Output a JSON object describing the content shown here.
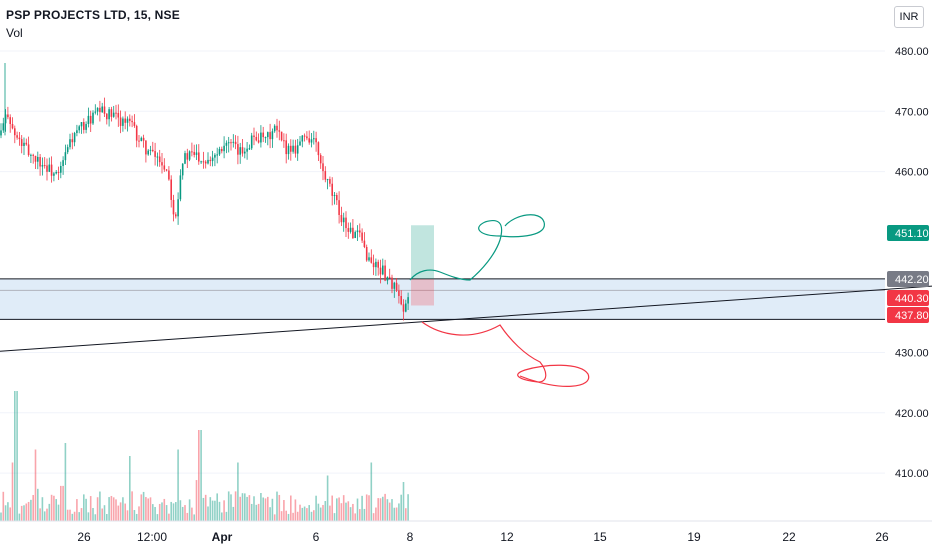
{
  "header": {
    "symbol_line": "PSP PROJECTS LTD, 15, NSE",
    "indicator": "Vol",
    "currency": "INR"
  },
  "chart_data": {
    "type": "candlestick",
    "y_axis": {
      "ticks": [
        "480.00",
        "470.00",
        "460.00",
        "430.00",
        "420.00",
        "410.00"
      ],
      "tick_values": [
        480,
        470,
        460,
        430,
        420,
        410
      ],
      "range": [
        401.6,
        488.6
      ]
    },
    "x_axis": {
      "ticks": [
        "26",
        "12:00",
        "Apr",
        "6",
        "8",
        "12",
        "15",
        "19",
        "22",
        "26"
      ],
      "bold": [
        "Apr"
      ]
    },
    "price_badges": [
      {
        "value": "451.10",
        "color": "#089981"
      },
      {
        "value": "442.20",
        "color": "#787b86"
      },
      {
        "value": "440.30",
        "color": "#f23645"
      },
      {
        "value": "437.80",
        "color": "#f23645"
      }
    ],
    "zone": {
      "top": 442.2,
      "bottom": 435.5,
      "color": "#d6e6f5"
    },
    "trendline": {
      "from": [
        0,
        430.2
      ],
      "to": [
        932,
        441.0
      ]
    },
    "position": {
      "entry": 442.2,
      "target": 451.1,
      "stop": 437.8
    },
    "price_anchors": [
      [
        0,
        466
      ],
      [
        8,
        470
      ],
      [
        14,
        466
      ],
      [
        30,
        463
      ],
      [
        45,
        461
      ],
      [
        58,
        459
      ],
      [
        70,
        465
      ],
      [
        85,
        468
      ],
      [
        100,
        470
      ],
      [
        115,
        469
      ],
      [
        130,
        468
      ],
      [
        140,
        465
      ],
      [
        150,
        463
      ],
      [
        160,
        462
      ],
      [
        168,
        460
      ],
      [
        175,
        452
      ],
      [
        182,
        462
      ],
      [
        195,
        463
      ],
      [
        205,
        462
      ],
      [
        215,
        463
      ],
      [
        225,
        465
      ],
      [
        240,
        463
      ],
      [
        255,
        466
      ],
      [
        265,
        465
      ],
      [
        275,
        467
      ],
      [
        285,
        464
      ],
      [
        295,
        464
      ],
      [
        305,
        466
      ],
      [
        315,
        465
      ],
      [
        322,
        460
      ],
      [
        330,
        457
      ],
      [
        340,
        453
      ],
      [
        350,
        450
      ],
      [
        360,
        449
      ],
      [
        370,
        445
      ],
      [
        380,
        444
      ],
      [
        390,
        442
      ],
      [
        397,
        440
      ],
      [
        403,
        436
      ],
      [
        410,
        440
      ]
    ],
    "volume_peaks": [
      {
        "x": 16,
        "v": 1.0
      },
      {
        "x": 35,
        "v": 0.55
      },
      {
        "x": 65,
        "v": 0.6
      },
      {
        "x": 130,
        "v": 0.5
      },
      {
        "x": 178,
        "v": 0.55
      },
      {
        "x": 200,
        "v": 0.7
      },
      {
        "x": 237,
        "v": 0.45
      },
      {
        "x": 328,
        "v": 0.35
      },
      {
        "x": 372,
        "v": 0.45
      },
      {
        "x": 403,
        "v": 0.3
      }
    ]
  }
}
